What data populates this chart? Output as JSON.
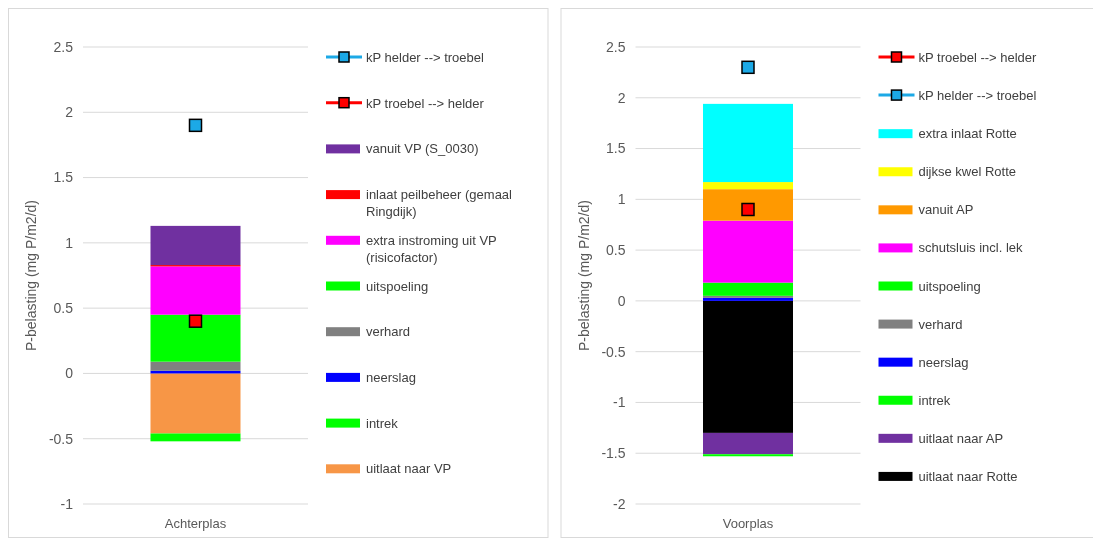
{
  "chart_data": [
    {
      "type": "bar",
      "stacked": true,
      "ylabel": "P-belasting (mg P/m2/d)",
      "categories": [
        "Achterplas"
      ],
      "ylim": [
        -1,
        2.5
      ],
      "yticks": [
        -1,
        -0.5,
        0,
        0.5,
        1,
        1.5,
        2,
        2.5
      ],
      "grid": "y",
      "legend": "right",
      "marker": "square",
      "series": [
        {
          "name": "uitlaat naar VP",
          "color": "#f79646",
          "values": [
            -0.46
          ]
        },
        {
          "name": "intrek",
          "color": "#00ff00",
          "values": [
            -0.06
          ]
        },
        {
          "name": "neerslag",
          "color": "#0000ff",
          "values": [
            0.02
          ]
        },
        {
          "name": "verhard",
          "color": "#808080",
          "values": [
            0.07
          ]
        },
        {
          "name": "uitspoeling",
          "color": "#00ff00",
          "values": [
            0.36
          ]
        },
        {
          "name": "extra instroming uit VP (risicofactor)",
          "color": "#ff00ff",
          "values": [
            0.37
          ]
        },
        {
          "name": "inlaat peilbeheer (gemaal Ringdijk)",
          "color": "#ff0000",
          "values": [
            0.01
          ]
        },
        {
          "name": "vanuit VP (S_0030)",
          "color": "#7030a0",
          "values": [
            0.3
          ]
        },
        {
          "name": "kP troebel --> helder",
          "type": "scatter",
          "color": "#ff0000",
          "x": [
            "Achterplas"
          ],
          "values": [
            0.4
          ]
        },
        {
          "name": "kP helder --> troebel",
          "type": "scatter",
          "color": "#1ca9e6",
          "x": [
            "Achterplas"
          ],
          "values": [
            1.9
          ]
        }
      ]
    },
    {
      "type": "bar",
      "stacked": true,
      "ylabel": "P-belasting (mg P/m2/d)",
      "categories": [
        "Voorplas"
      ],
      "ylim": [
        -2,
        2.5
      ],
      "yticks": [
        -2,
        -1.5,
        -1,
        -0.5,
        0,
        0.5,
        1,
        1.5,
        2,
        2.5
      ],
      "grid": "y",
      "legend": "right",
      "marker": "square",
      "series": [
        {
          "name": "uitlaat naar Rotte",
          "color": "#000000",
          "values": [
            -1.3
          ]
        },
        {
          "name": "uitlaat naar AP",
          "color": "#7030a0",
          "values": [
            -0.21
          ]
        },
        {
          "name": "intrek",
          "color": "#00ff00",
          "values": [
            -0.02
          ]
        },
        {
          "name": "neerslag",
          "color": "#0000ff",
          "values": [
            0.03
          ]
        },
        {
          "name": "verhard",
          "color": "#808080",
          "values": [
            0.02
          ]
        },
        {
          "name": "uitspoeling",
          "color": "#00ff00",
          "values": [
            0.13
          ]
        },
        {
          "name": "schutsluis incl. lek",
          "color": "#ff00ff",
          "values": [
            0.61
          ]
        },
        {
          "name": "vanuit AP",
          "color": "#ff9900",
          "values": [
            0.31
          ]
        },
        {
          "name": "dijkse kwel Rotte",
          "color": "#ffff00",
          "values": [
            0.07
          ]
        },
        {
          "name": "extra inlaat Rotte",
          "color": "#00ffff",
          "values": [
            0.77
          ]
        },
        {
          "name": "kP helder --> troebel",
          "type": "scatter",
          "color": "#1ca9e6",
          "x": [
            "Voorplas"
          ],
          "values": [
            2.3
          ]
        },
        {
          "name": "kP troebel --> helder",
          "type": "scatter",
          "color": "#ff0000",
          "x": [
            "Voorplas"
          ],
          "values": [
            0.9
          ]
        }
      ]
    }
  ]
}
